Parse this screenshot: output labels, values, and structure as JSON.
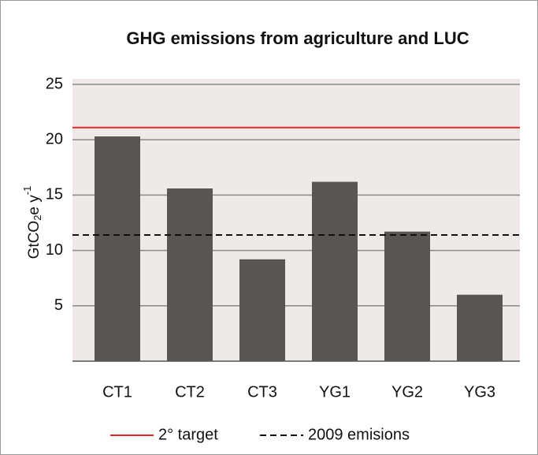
{
  "chart_data": {
    "type": "bar",
    "title": "GHG emissions from agriculture and LUC",
    "ylabel": {
      "main": "GtCO",
      "sub": "2",
      "mid": "e y",
      "sup": "-1"
    },
    "categories": [
      "CT1",
      "CT2",
      "CT3",
      "YG1",
      "YG2",
      "YG3"
    ],
    "values": [
      20.3,
      15.6,
      9.2,
      16.2,
      11.7,
      6.0
    ],
    "color": "#5a5452",
    "ylim": [
      0,
      25
    ],
    "yticks": [
      5,
      10,
      15,
      20,
      25
    ],
    "grid": true,
    "reference_lines": [
      {
        "name": "2° target",
        "value": 21.1,
        "color": "#e0292b",
        "style": "solid"
      },
      {
        "name": "2009 emisions",
        "value": 11.4,
        "color": "#111111",
        "style": "dashed"
      }
    ],
    "legend": "bottom"
  }
}
